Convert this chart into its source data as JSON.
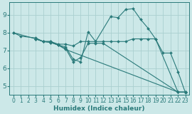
{
  "xlabel": "Humidex (Indice chaleur)",
  "xlim": [
    -0.5,
    23.5
  ],
  "ylim": [
    4.5,
    9.7
  ],
  "yticks": [
    5,
    6,
    7,
    8,
    9
  ],
  "xticks": [
    0,
    1,
    2,
    3,
    4,
    5,
    6,
    7,
    8,
    9,
    10,
    11,
    12,
    13,
    14,
    15,
    16,
    17,
    18,
    19,
    20,
    21,
    22,
    23
  ],
  "bg_color": "#cce8e8",
  "grid_color": "#aad0d0",
  "line_color": "#2a7a7a",
  "lines": [
    {
      "x": [
        0,
        1,
        3,
        4,
        5,
        6,
        7,
        8,
        9,
        10,
        11,
        13,
        14,
        15,
        16,
        17,
        18,
        19,
        20,
        21,
        22,
        23
      ],
      "y": [
        8.0,
        7.8,
        7.7,
        7.5,
        7.5,
        7.3,
        7.2,
        6.5,
        6.35,
        8.05,
        7.5,
        8.9,
        8.85,
        9.3,
        9.35,
        8.75,
        8.25,
        7.65,
        6.85,
        6.85,
        5.8,
        4.6
      ]
    },
    {
      "x": [
        3,
        4,
        5,
        6,
        7,
        8,
        9,
        10,
        11,
        12,
        13,
        14,
        15,
        16,
        17,
        18,
        19,
        22,
        23
      ],
      "y": [
        7.65,
        7.5,
        7.5,
        7.35,
        7.35,
        7.25,
        7.5,
        7.5,
        7.5,
        7.5,
        7.5,
        7.5,
        7.5,
        7.65,
        7.65,
        7.65,
        7.65,
        4.65,
        4.65
      ]
    },
    {
      "x": [
        3,
        4,
        5,
        6,
        7,
        8,
        9,
        10,
        11,
        12,
        22,
        23
      ],
      "y": [
        7.65,
        7.5,
        7.45,
        7.3,
        7.1,
        6.35,
        6.6,
        7.4,
        7.4,
        7.4,
        4.65,
        4.65
      ]
    },
    {
      "x": [
        0,
        3,
        4,
        5,
        6,
        7,
        22,
        23
      ],
      "y": [
        8.0,
        7.65,
        7.5,
        7.45,
        7.3,
        7.05,
        4.65,
        4.65
      ]
    }
  ]
}
